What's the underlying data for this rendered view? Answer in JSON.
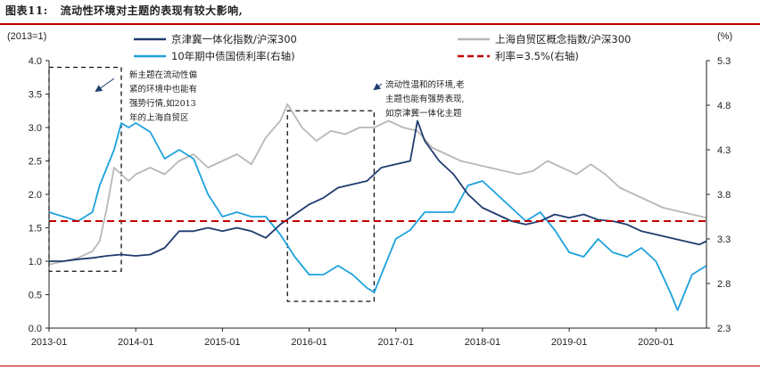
{
  "figure": {
    "number": "图表11:",
    "title": "流动性环境对主题的表现有较大影响,"
  },
  "chart_data": {
    "type": "line",
    "left_axis": {
      "unit_label": "(2013=1)",
      "range": [
        0.0,
        4.0
      ],
      "ticks": [
        "0.0",
        "0.5",
        "1.0",
        "1.5",
        "2.0",
        "2.5",
        "3.0",
        "3.5",
        "4.0"
      ]
    },
    "right_axis": {
      "unit_label": "(%)",
      "range": [
        2.3,
        5.3
      ],
      "ticks": [
        "2.3",
        "2.8",
        "3.3",
        "3.8",
        "4.3",
        "4.8",
        "5.3"
      ]
    },
    "x_axis": {
      "range": [
        "2013-01",
        "2020-08"
      ],
      "ticks": [
        "2013-01",
        "2014-01",
        "2015-01",
        "2016-01",
        "2017-01",
        "2018-01",
        "2019-01",
        "2020-01"
      ]
    },
    "series": [
      {
        "name": "京津冀一体化指数/沪深300",
        "axis": "left",
        "color": "#1f3c6e",
        "points": [
          [
            "2013-01",
            1.0
          ],
          [
            "2013-03",
            1.0
          ],
          [
            "2013-05",
            1.03
          ],
          [
            "2013-07",
            1.05
          ],
          [
            "2013-09",
            1.08
          ],
          [
            "2013-11",
            1.1
          ],
          [
            "2014-01",
            1.08
          ],
          [
            "2014-03",
            1.1
          ],
          [
            "2014-05",
            1.2
          ],
          [
            "2014-07",
            1.45
          ],
          [
            "2014-09",
            1.45
          ],
          [
            "2014-11",
            1.5
          ],
          [
            "2015-01",
            1.45
          ],
          [
            "2015-03",
            1.5
          ],
          [
            "2015-05",
            1.45
          ],
          [
            "2015-07",
            1.35
          ],
          [
            "2015-09",
            1.55
          ],
          [
            "2015-11",
            1.7
          ],
          [
            "2016-01",
            1.85
          ],
          [
            "2016-03",
            1.95
          ],
          [
            "2016-05",
            2.1
          ],
          [
            "2016-07",
            2.15
          ],
          [
            "2016-09",
            2.2
          ],
          [
            "2016-11",
            2.4
          ],
          [
            "2017-01",
            2.45
          ],
          [
            "2017-03",
            2.5
          ],
          [
            "2017-04",
            3.1
          ],
          [
            "2017-05",
            2.8
          ],
          [
            "2017-07",
            2.5
          ],
          [
            "2017-09",
            2.3
          ],
          [
            "2017-11",
            2.0
          ],
          [
            "2018-01",
            1.8
          ],
          [
            "2018-03",
            1.7
          ],
          [
            "2018-05",
            1.6
          ],
          [
            "2018-07",
            1.55
          ],
          [
            "2018-09",
            1.6
          ],
          [
            "2018-11",
            1.7
          ],
          [
            "2019-01",
            1.65
          ],
          [
            "2019-03",
            1.7
          ],
          [
            "2019-05",
            1.62
          ],
          [
            "2019-07",
            1.6
          ],
          [
            "2019-09",
            1.55
          ],
          [
            "2019-11",
            1.45
          ],
          [
            "2020-01",
            1.4
          ],
          [
            "2020-03",
            1.35
          ],
          [
            "2020-05",
            1.3
          ],
          [
            "2020-07",
            1.25
          ],
          [
            "2020-08",
            1.3
          ]
        ]
      },
      {
        "name": "上海自贸区概念指数/沪深300",
        "axis": "left",
        "color": "#b8b8b8",
        "points": [
          [
            "2013-01",
            0.95
          ],
          [
            "2013-03",
            1.0
          ],
          [
            "2013-05",
            1.05
          ],
          [
            "2013-07",
            1.15
          ],
          [
            "2013-08",
            1.3
          ],
          [
            "2013-09",
            1.8
          ],
          [
            "2013-10",
            2.4
          ],
          [
            "2013-12",
            2.2
          ],
          [
            "2014-01",
            2.3
          ],
          [
            "2014-03",
            2.4
          ],
          [
            "2014-05",
            2.3
          ],
          [
            "2014-07",
            2.5
          ],
          [
            "2014-09",
            2.6
          ],
          [
            "2014-11",
            2.4
          ],
          [
            "2015-01",
            2.5
          ],
          [
            "2015-03",
            2.6
          ],
          [
            "2015-05",
            2.45
          ],
          [
            "2015-07",
            2.85
          ],
          [
            "2015-09",
            3.1
          ],
          [
            "2015-10",
            3.35
          ],
          [
            "2015-12",
            3.0
          ],
          [
            "2016-02",
            2.8
          ],
          [
            "2016-04",
            2.95
          ],
          [
            "2016-06",
            2.9
          ],
          [
            "2016-08",
            3.0
          ],
          [
            "2016-10",
            3.0
          ],
          [
            "2016-12",
            3.1
          ],
          [
            "2017-02",
            3.0
          ],
          [
            "2017-04",
            2.95
          ],
          [
            "2017-06",
            2.7
          ],
          [
            "2017-08",
            2.6
          ],
          [
            "2017-10",
            2.5
          ],
          [
            "2017-12",
            2.45
          ],
          [
            "2018-02",
            2.4
          ],
          [
            "2018-04",
            2.35
          ],
          [
            "2018-06",
            2.3
          ],
          [
            "2018-08",
            2.35
          ],
          [
            "2018-10",
            2.5
          ],
          [
            "2018-12",
            2.4
          ],
          [
            "2019-02",
            2.3
          ],
          [
            "2019-04",
            2.45
          ],
          [
            "2019-06",
            2.3
          ],
          [
            "2019-08",
            2.1
          ],
          [
            "2019-10",
            2.0
          ],
          [
            "2019-12",
            1.9
          ],
          [
            "2020-02",
            1.8
          ],
          [
            "2020-04",
            1.75
          ],
          [
            "2020-06",
            1.7
          ],
          [
            "2020-08",
            1.65
          ]
        ]
      },
      {
        "name": "10年期中债国债利率(右轴)",
        "axis": "right",
        "color": "#1da2dc",
        "points": [
          [
            "2013-01",
            3.6
          ],
          [
            "2013-03",
            3.55
          ],
          [
            "2013-05",
            3.5
          ],
          [
            "2013-07",
            3.6
          ],
          [
            "2013-08",
            3.9
          ],
          [
            "2013-09",
            4.1
          ],
          [
            "2013-10",
            4.3
          ],
          [
            "2013-11",
            4.6
          ],
          [
            "2013-12",
            4.55
          ],
          [
            "2014-01",
            4.6
          ],
          [
            "2014-03",
            4.5
          ],
          [
            "2014-05",
            4.2
          ],
          [
            "2014-07",
            4.3
          ],
          [
            "2014-09",
            4.2
          ],
          [
            "2014-11",
            3.8
          ],
          [
            "2015-01",
            3.55
          ],
          [
            "2015-03",
            3.6
          ],
          [
            "2015-05",
            3.55
          ],
          [
            "2015-07",
            3.55
          ],
          [
            "2015-09",
            3.35
          ],
          [
            "2015-11",
            3.1
          ],
          [
            "2016-01",
            2.9
          ],
          [
            "2016-03",
            2.9
          ],
          [
            "2016-05",
            3.0
          ],
          [
            "2016-07",
            2.9
          ],
          [
            "2016-09",
            2.75
          ],
          [
            "2016-10",
            2.7
          ],
          [
            "2016-11",
            2.9
          ],
          [
            "2016-12",
            3.1
          ],
          [
            "2017-01",
            3.3
          ],
          [
            "2017-03",
            3.4
          ],
          [
            "2017-05",
            3.6
          ],
          [
            "2017-07",
            3.6
          ],
          [
            "2017-09",
            3.6
          ],
          [
            "2017-11",
            3.9
          ],
          [
            "2018-01",
            3.95
          ],
          [
            "2018-03",
            3.8
          ],
          [
            "2018-05",
            3.65
          ],
          [
            "2018-07",
            3.5
          ],
          [
            "2018-09",
            3.6
          ],
          [
            "2018-11",
            3.4
          ],
          [
            "2019-01",
            3.15
          ],
          [
            "2019-03",
            3.1
          ],
          [
            "2019-05",
            3.3
          ],
          [
            "2019-07",
            3.15
          ],
          [
            "2019-09",
            3.1
          ],
          [
            "2019-11",
            3.2
          ],
          [
            "2020-01",
            3.05
          ],
          [
            "2020-03",
            2.7
          ],
          [
            "2020-04",
            2.5
          ],
          [
            "2020-05",
            2.7
          ],
          [
            "2020-06",
            2.9
          ],
          [
            "2020-08",
            3.0
          ]
        ]
      },
      {
        "name": "利率=3.5%(右轴)",
        "axis": "right",
        "color": "#c00000",
        "style": "dashed",
        "points": [
          [
            "2013-01",
            3.5
          ],
          [
            "2020-08",
            3.5
          ]
        ]
      }
    ],
    "highlight_boxes": [
      {
        "from": "2013-01",
        "to": "2013-11",
        "top": 3.9,
        "bottom": 0.85
      },
      {
        "from": "2015-10",
        "to": "2016-10",
        "top": 3.25,
        "bottom": 0.4
      }
    ],
    "annotations": [
      {
        "lines": [
          "新主题在流动性偏",
          "紧的环境中也能有",
          "强势行情,如2013",
          "年的上海自贸区"
        ]
      },
      {
        "lines": [
          "流动性温和的环境,老",
          "主题也能有强势表现,",
          "如京津冀一体化主题"
        ]
      }
    ],
    "legend": {
      "placement": "top",
      "entries": [
        "京津冀一体化指数/沪深300",
        "上海自贸区概念指数/沪深300",
        "10年期中债国债利率(右轴)",
        "利率=3.5%(右轴)"
      ]
    },
    "grid": false
  }
}
